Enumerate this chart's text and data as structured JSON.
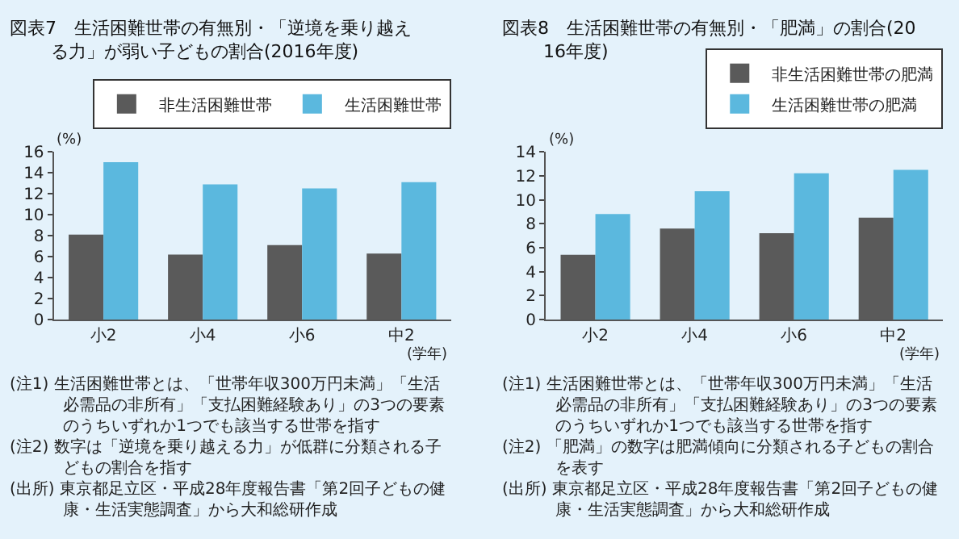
{
  "chart_data": [
    {
      "type": "bar",
      "title": "図表7　生活困難世帯の有無別・「逆境を乗り越える力」が弱い子どもの割合(2016年度)",
      "ylabel": "(%)",
      "xlabel": "(学年)",
      "categories": [
        "小2",
        "小4",
        "小6",
        "中2"
      ],
      "series": [
        {
          "name": "非生活困難世帯",
          "color": "#5a5a5a",
          "values": [
            8.1,
            6.2,
            7.1,
            6.3
          ]
        },
        {
          "name": "生活困難世帯",
          "color": "#5bb8de",
          "values": [
            15.0,
            12.9,
            12.5,
            13.1
          ]
        }
      ],
      "ylim": [
        0,
        16
      ],
      "yticks": [
        0,
        2,
        4,
        6,
        8,
        10,
        12,
        14,
        16
      ],
      "grid": false,
      "legend": "top right",
      "annotations": [
        "(注1) 生活困難世帯とは、「世帯年収300万円未満」「生活必需品の非所有」「支払困難経験あり」の3つの要素のうちいずれか1つでも該当する世帯を指す",
        "(注2) 数字は「逆境を乗り越える力」が低群に分類される子どもの割合を指す",
        "(出所) 東京都足立区・平成28年度報告書「第2回子どもの健康・生活実態調査」から大和総研作成"
      ]
    },
    {
      "type": "bar",
      "title": "図表8　生活困難世帯の有無別・「肥満」の割合(2016年度)",
      "ylabel": "(%)",
      "xlabel": "(学年)",
      "categories": [
        "小2",
        "小4",
        "小6",
        "中2"
      ],
      "series": [
        {
          "name": "非生活困難世帯の肥満",
          "color": "#5a5a5a",
          "values": [
            5.4,
            7.6,
            7.2,
            8.5
          ]
        },
        {
          "name": "生活困難世帯の肥満",
          "color": "#5bb8de",
          "values": [
            8.8,
            10.7,
            12.2,
            12.5
          ]
        }
      ],
      "ylim": [
        0,
        14
      ],
      "yticks": [
        0,
        2,
        4,
        6,
        8,
        10,
        12,
        14
      ],
      "grid": false,
      "legend": "top right",
      "annotations": [
        "(注1) 生活困難世帯とは、「世帯年収300万円未満」「生活必需品の非所有」「支払困難経験あり」の3つの要素のうちいずれか1つでも該当する世帯を指す",
        "(注2) 「肥満」の数字は肥満傾向に分類される子どもの割合を表す",
        "(出所) 東京都足立区・平成28年度報告書「第2回子どもの健康・生活実態調査」から大和総研作成"
      ]
    }
  ]
}
